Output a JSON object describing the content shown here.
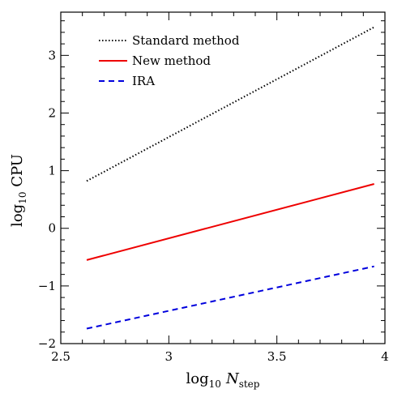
{
  "chart_data": {
    "type": "line",
    "xlabel": {
      "main": "log",
      "sub": "10",
      "var": "N",
      "varsub": "step"
    },
    "ylabel": {
      "main": "log",
      "sub": "10",
      "rest": " CPU"
    },
    "xlim": [
      2.5,
      4.0
    ],
    "ylim": [
      -2.0,
      3.75
    ],
    "x_ticks": [
      2.5,
      3.0,
      3.5,
      4.0
    ],
    "x_tick_labels": [
      "2.5",
      "3",
      "3.5",
      "4"
    ],
    "y_ticks": [
      -2,
      -1,
      0,
      1,
      2,
      3
    ],
    "y_tick_labels": [
      "−2",
      "−1",
      "0",
      "1",
      "2",
      "3"
    ],
    "legend_position": "top-left",
    "series": [
      {
        "name": "Standard method",
        "color": "#000000",
        "style": "dotted",
        "x": [
          2.62,
          3.95
        ],
        "y": [
          0.82,
          3.49
        ]
      },
      {
        "name": "New method",
        "color": "#ee0000",
        "style": "solid",
        "x": [
          2.62,
          3.95
        ],
        "y": [
          -0.55,
          0.77
        ]
      },
      {
        "name": "IRA",
        "color": "#0000dd",
        "style": "dashed",
        "x": [
          2.62,
          3.95
        ],
        "y": [
          -1.74,
          -0.66
        ]
      }
    ]
  }
}
